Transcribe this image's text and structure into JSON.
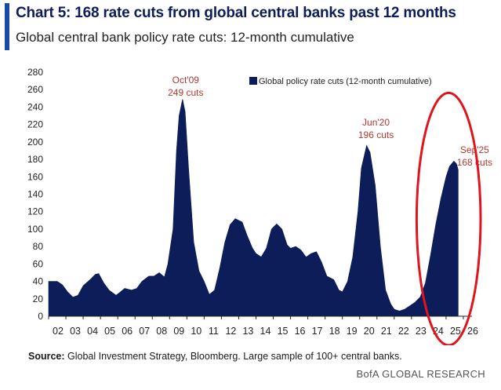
{
  "header": {
    "title": "Chart 5: 168 rate cuts from global central banks past 12 months",
    "subtitle": "Global central bank policy rate cuts: 12-month cumulative"
  },
  "footer": {
    "source_label": "Source:",
    "source_text": "Global Investment Strategy, Bloomberg. Large sample of 100+ central banks.",
    "brand": "BofA GLOBAL RESEARCH"
  },
  "colors": {
    "series": "#0c1d5a",
    "annotation": "#b03a30",
    "highlight": "#e0141e",
    "accent": "#1a4aa8"
  },
  "chart_data": {
    "type": "area",
    "xlabel": "",
    "ylabel": "",
    "ylim": [
      0,
      280
    ],
    "yticks": [
      0,
      20,
      40,
      60,
      80,
      100,
      120,
      140,
      160,
      180,
      200,
      220,
      240,
      260,
      280
    ],
    "xticks": [
      "02",
      "03",
      "04",
      "05",
      "06",
      "07",
      "08",
      "09",
      "10",
      "11",
      "12",
      "13",
      "14",
      "15",
      "16",
      "17",
      "18",
      "19",
      "20",
      "21",
      "22",
      "23",
      "24",
      "25",
      "26"
    ],
    "xlim": [
      2002,
      2026.5
    ],
    "grid": false,
    "legend_position": "top-right",
    "series": [
      {
        "name": "Global policy rate cuts (12-month cumulative)",
        "points": [
          [
            2002.0,
            40
          ],
          [
            2002.5,
            40
          ],
          [
            2002.8,
            36
          ],
          [
            2003.1,
            28
          ],
          [
            2003.4,
            22
          ],
          [
            2003.7,
            24
          ],
          [
            2004.0,
            35
          ],
          [
            2004.4,
            42
          ],
          [
            2004.7,
            48
          ],
          [
            2004.9,
            49
          ],
          [
            2005.2,
            38
          ],
          [
            2005.5,
            30
          ],
          [
            2005.9,
            24
          ],
          [
            2006.1,
            27
          ],
          [
            2006.4,
            32
          ],
          [
            2006.8,
            30
          ],
          [
            2007.1,
            32
          ],
          [
            2007.4,
            40
          ],
          [
            2007.8,
            46
          ],
          [
            2008.1,
            46
          ],
          [
            2008.4,
            50
          ],
          [
            2008.7,
            45
          ],
          [
            2008.9,
            60
          ],
          [
            2009.2,
            100
          ],
          [
            2009.4,
            190
          ],
          [
            2009.55,
            230
          ],
          [
            2009.75,
            249
          ],
          [
            2009.9,
            235
          ],
          [
            2010.1,
            170
          ],
          [
            2010.4,
            85
          ],
          [
            2010.7,
            52
          ],
          [
            2011.0,
            40
          ],
          [
            2011.3,
            25
          ],
          [
            2011.6,
            30
          ],
          [
            2011.9,
            55
          ],
          [
            2012.2,
            85
          ],
          [
            2012.5,
            105
          ],
          [
            2012.8,
            112
          ],
          [
            2013.2,
            108
          ],
          [
            2013.5,
            92
          ],
          [
            2013.8,
            78
          ],
          [
            2014.0,
            72
          ],
          [
            2014.3,
            68
          ],
          [
            2014.6,
            78
          ],
          [
            2014.9,
            100
          ],
          [
            2015.2,
            106
          ],
          [
            2015.5,
            100
          ],
          [
            2015.8,
            82
          ],
          [
            2016.0,
            78
          ],
          [
            2016.3,
            80
          ],
          [
            2016.6,
            76
          ],
          [
            2016.9,
            68
          ],
          [
            2017.2,
            72
          ],
          [
            2017.5,
            74
          ],
          [
            2017.8,
            62
          ],
          [
            2018.1,
            46
          ],
          [
            2018.5,
            42
          ],
          [
            2018.8,
            30
          ],
          [
            2019.0,
            28
          ],
          [
            2019.3,
            40
          ],
          [
            2019.6,
            68
          ],
          [
            2019.9,
            120
          ],
          [
            2020.1,
            170
          ],
          [
            2020.4,
            196
          ],
          [
            2020.6,
            188
          ],
          [
            2020.9,
            150
          ],
          [
            2021.2,
            80
          ],
          [
            2021.5,
            30
          ],
          [
            2021.8,
            14
          ],
          [
            2022.0,
            8
          ],
          [
            2022.3,
            6
          ],
          [
            2022.6,
            8
          ],
          [
            2022.9,
            12
          ],
          [
            2023.2,
            16
          ],
          [
            2023.5,
            22
          ],
          [
            2023.8,
            38
          ],
          [
            2024.1,
            70
          ],
          [
            2024.4,
            105
          ],
          [
            2024.7,
            135
          ],
          [
            2025.0,
            160
          ],
          [
            2025.2,
            172
          ],
          [
            2025.45,
            178
          ],
          [
            2025.6,
            175
          ],
          [
            2025.7,
            168
          ]
        ]
      }
    ],
    "annotations": [
      {
        "label": "Oct'09",
        "sublabel": "249 cuts",
        "x": 2009.75,
        "y": 249
      },
      {
        "label": "Jun'20",
        "sublabel": "196 cuts",
        "x": 2020.4,
        "y": 196
      },
      {
        "label": "Sep'25",
        "sublabel": "168 cuts",
        "x": 2025.7,
        "y": 168
      }
    ],
    "highlight": {
      "shape": "ellipse",
      "from_x": 2023.3,
      "to_x": 2027.0,
      "from_y": 0,
      "to_y": 250
    }
  }
}
